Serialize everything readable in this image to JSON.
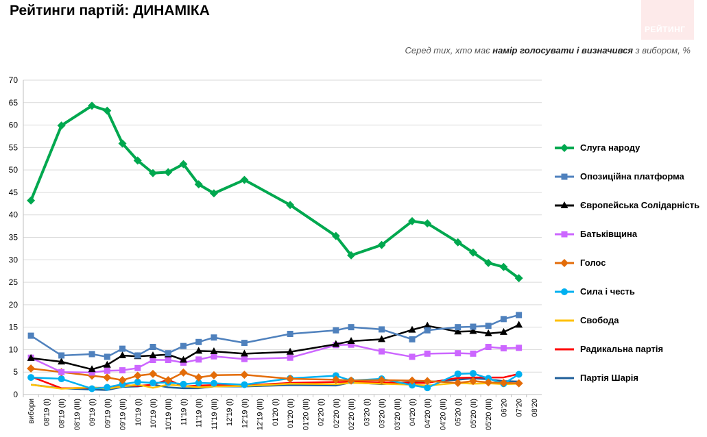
{
  "header": {
    "title": "Рейтинги партій: ДИНАМІКА",
    "logo_text": "РЕЙТИНГ",
    "subtitle_pre": "Серед тих, хто має ",
    "subtitle_bold": "намір голосувати і визначився",
    "subtitle_post": " з вибором, %"
  },
  "chart_data": {
    "type": "line",
    "ylim": [
      0,
      70
    ],
    "yticks": [
      0,
      5,
      10,
      15,
      20,
      25,
      30,
      35,
      40,
      45,
      50,
      55,
      60,
      65,
      70
    ],
    "grid": "horizontal",
    "legend_position": "right",
    "categories": [
      "вибори",
      "08'19 (I)",
      "08'19 (II)",
      "08'19 (III)",
      "09'19 (I)",
      "09'19 (II)",
      "09'19 (III)",
      "10'19 (I)",
      "10'19 (II)",
      "10'19 (III)",
      "11'19 (I)",
      "11'19 (II)",
      "11'19 (III)",
      "12'19 (I)",
      "12'19 (II)",
      "12'19 (III)",
      "01'20 (I)",
      "01'20 (II)",
      "01'20 (III)",
      "02'20 (I)",
      "02'20 (II)",
      "02'20 (III)",
      "03'20 (I)",
      "03'20 (II)",
      "03'20 (III)",
      "04'20 (I)",
      "04'20 (II)",
      "04'20 (III)",
      "05'20 (I)",
      "05'20 (II)",
      "05'20 (III)",
      "06'20",
      "07'20",
      "08'20"
    ],
    "series": [
      {
        "name": "Слуга народу",
        "color": "#00a84f",
        "marker": "diamond",
        "values": [
          43.2,
          null,
          59.9,
          null,
          64.3,
          63.2,
          55.9,
          52.1,
          49.3,
          49.5,
          51.3,
          46.8,
          44.8,
          null,
          47.8,
          null,
          null,
          42.2,
          null,
          null,
          35.3,
          31.0,
          null,
          33.3,
          null,
          38.6,
          38.1,
          null,
          33.9,
          31.6,
          29.3,
          28.4,
          25.9,
          null
        ]
      },
      {
        "name": "Опозиційна платформа",
        "color": "#4f81bd",
        "marker": "square",
        "values": [
          13.1,
          null,
          8.7,
          null,
          9.0,
          8.4,
          10.2,
          8.7,
          10.6,
          9.2,
          10.8,
          11.7,
          12.7,
          null,
          11.5,
          null,
          null,
          13.5,
          null,
          null,
          14.3,
          15.0,
          null,
          14.5,
          null,
          12.3,
          14.3,
          null,
          15.0,
          15.1,
          15.3,
          16.8,
          17.7,
          null
        ]
      },
      {
        "name": "Європейська Солідарність",
        "color": "#000000",
        "marker": "triangle",
        "values": [
          8.1,
          null,
          7.3,
          null,
          5.6,
          6.6,
          8.7,
          8.5,
          8.7,
          8.9,
          7.7,
          9.7,
          9.6,
          null,
          9.1,
          null,
          null,
          9.5,
          null,
          null,
          11.2,
          11.9,
          null,
          12.3,
          null,
          14.4,
          15.3,
          null,
          14.0,
          14.1,
          13.6,
          13.9,
          15.5,
          null
        ]
      },
      {
        "name": "Батьківщина",
        "color": "#cc66ff",
        "marker": "square",
        "values": [
          8.2,
          null,
          5.0,
          null,
          4.9,
          5.3,
          5.4,
          5.9,
          7.7,
          7.7,
          7.1,
          7.8,
          8.5,
          null,
          7.9,
          null,
          null,
          8.2,
          null,
          null,
          11.0,
          11.1,
          null,
          9.6,
          null,
          8.4,
          9.1,
          null,
          9.2,
          9.1,
          10.6,
          10.3,
          10.4,
          null
        ]
      },
      {
        "name": "Голос",
        "color": "#e36c09",
        "marker": "diamond",
        "values": [
          5.8,
          null,
          5.0,
          null,
          4.2,
          3.8,
          3.2,
          4.2,
          4.6,
          3.2,
          4.9,
          3.8,
          4.3,
          null,
          4.4,
          null,
          null,
          3.5,
          null,
          null,
          3.3,
          3.1,
          null,
          3.2,
          null,
          3.1,
          3.0,
          null,
          2.6,
          3.0,
          2.7,
          2.6,
          2.5,
          null
        ]
      },
      {
        "name": "Сила і честь",
        "color": "#00b0f0",
        "marker": "circle",
        "values": [
          3.8,
          null,
          3.5,
          null,
          1.3,
          1.6,
          2.3,
          2.8,
          2.6,
          2.7,
          2.3,
          2.6,
          2.5,
          null,
          2.2,
          null,
          null,
          3.6,
          null,
          null,
          4.2,
          3.1,
          null,
          3.5,
          null,
          2.1,
          1.5,
          null,
          4.6,
          4.7,
          3.6,
          2.4,
          4.5,
          null
        ]
      },
      {
        "name": "Свобода",
        "color": "#ffc000",
        "marker": "none",
        "values": [
          2.2,
          null,
          1.3,
          null,
          1.6,
          1.3,
          1.8,
          2.2,
          1.5,
          2.2,
          1.9,
          1.6,
          1.8,
          null,
          1.9,
          null,
          null,
          2.4,
          null,
          null,
          2.3,
          2.6,
          null,
          2.4,
          null,
          2.2,
          2.0,
          null,
          2.6,
          2.4,
          2.5,
          2.3,
          2.4,
          null
        ]
      },
      {
        "name": "Радикальна партія",
        "color": "#ff0000",
        "marker": "none",
        "values": [
          4.0,
          null,
          1.4,
          null,
          1.5,
          1.5,
          2.1,
          1.9,
          2.2,
          3.3,
          1.8,
          2.0,
          2.1,
          null,
          2.0,
          null,
          null,
          2.6,
          null,
          null,
          2.8,
          2.8,
          null,
          2.7,
          null,
          2.6,
          2.6,
          null,
          3.7,
          3.8,
          3.8,
          3.8,
          4.6,
          null
        ]
      },
      {
        "name": "Партія Шарія",
        "color": "#1f5f99",
        "marker": "none",
        "values": [
          2.2,
          null,
          1.4,
          null,
          1.1,
          1.0,
          1.7,
          1.8,
          2.2,
          1.6,
          1.4,
          1.4,
          1.8,
          null,
          1.8,
          null,
          null,
          2.1,
          null,
          null,
          2.0,
          2.7,
          null,
          2.3,
          null,
          2.8,
          2.8,
          null,
          3.3,
          3.6,
          3.4,
          3.0,
          2.9,
          null
        ]
      }
    ]
  }
}
